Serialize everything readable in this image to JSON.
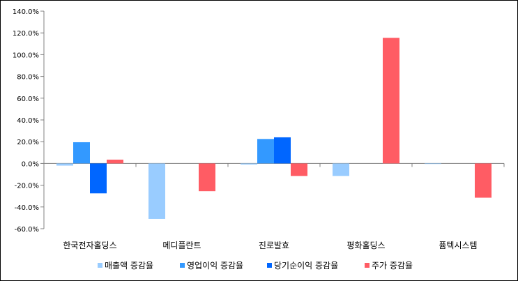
{
  "chart_data": {
    "type": "bar",
    "title": "",
    "xlabel": "",
    "ylabel": "",
    "categories": [
      "한국전자홀딩스",
      "메디플란트",
      "진로발효",
      "평화홀딩스",
      "퓸텍시스템"
    ],
    "series": [
      {
        "name": "매출액 증감율",
        "color": "#99CCFF",
        "values": [
          -2.0,
          -51.0,
          -1.0,
          -11.5,
          -0.5
        ]
      },
      {
        "name": "영업이익 증감율",
        "color": "#3399FF",
        "values": [
          19.5,
          0.0,
          22.5,
          0.0,
          0.0
        ]
      },
      {
        "name": "당기순이익 증감율",
        "color": "#0066FF",
        "values": [
          -27.5,
          0.0,
          24.0,
          0.0,
          0.0
        ]
      },
      {
        "name": "주가 증감율",
        "color": "#FF5C64",
        "values": [
          3.5,
          -25.5,
          -11.5,
          115.5,
          -31.5
        ]
      }
    ],
    "ylim": [
      -60,
      140
    ],
    "yticks": [
      -60,
      -40,
      -20,
      0,
      20,
      40,
      60,
      80,
      100,
      120,
      140
    ],
    "ytick_labels": [
      "-60.0%",
      "-40.0%",
      "-20.0%",
      "0.0%",
      "20.0%",
      "40.0%",
      "60.0%",
      "80.0%",
      "100.0%",
      "120.0%",
      "140.0%"
    ],
    "grid": false,
    "legend": "bottom"
  }
}
